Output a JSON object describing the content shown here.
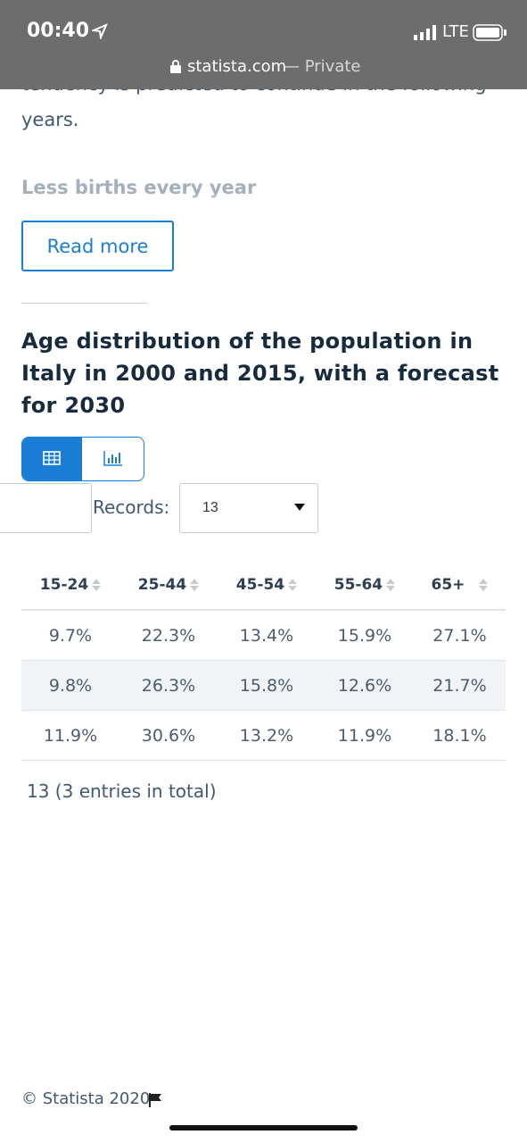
{
  "status_bar": {
    "time": "00:40",
    "network": "LTE",
    "domain": "statista.com",
    "mode": "— Private"
  },
  "article": {
    "cut_line": "tendency is predicted to continue in the following",
    "line_end": "years.",
    "faded_heading": "Less births every year",
    "read_more": "Read more"
  },
  "chart_section": {
    "title": "Age distribution of the population in Italy in 2000 and 2015, with a forecast for 2030",
    "records_label": "Records:",
    "records_value": "13",
    "table": {
      "headers": [
        "15-24",
        "25-44",
        "45-54",
        "55-64",
        "65+"
      ],
      "rows": [
        [
          "9.7%",
          "22.3%",
          "13.4%",
          "15.9%",
          "27.1%"
        ],
        [
          "9.8%",
          "26.3%",
          "15.8%",
          "12.6%",
          "21.7%"
        ],
        [
          "11.9%",
          "30.6%",
          "13.2%",
          "11.9%",
          "18.1%"
        ]
      ]
    },
    "summary": "13 (3 entries in total)"
  },
  "footer": {
    "copyright": "© Statista 2020"
  }
}
